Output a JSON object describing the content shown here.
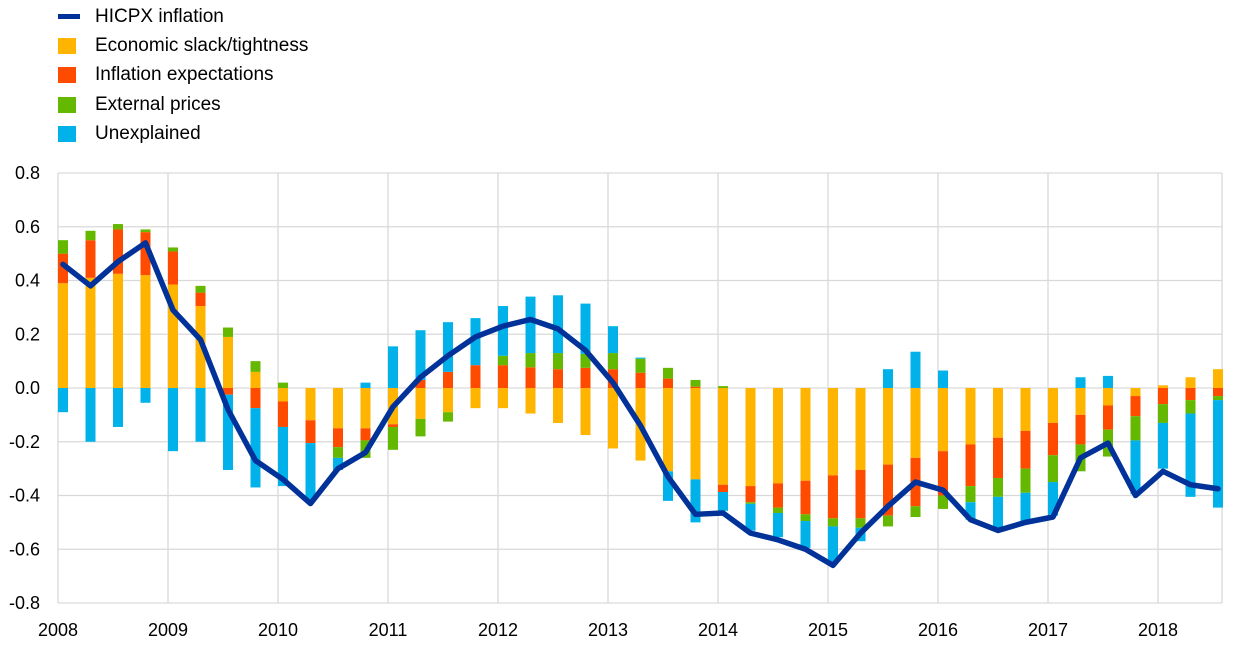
{
  "chart_data": {
    "type": "bar",
    "subtype": "stacked bar with line",
    "title": "",
    "xlabel": "",
    "ylabel": "",
    "ylim": [
      -0.8,
      0.8
    ],
    "yticks": [
      "0.8",
      "0.6",
      "0.4",
      "0.2",
      "0.0",
      "-0.2",
      "-0.4",
      "-0.6",
      "-0.8"
    ],
    "ytick_values": [
      0.8,
      0.6,
      0.4,
      0.2,
      0,
      -0.2,
      -0.4,
      -0.6,
      -0.8
    ],
    "xticks": [
      "2008",
      "2009",
      "2010",
      "2011",
      "2012",
      "2013",
      "2014",
      "2015",
      "2016",
      "2017",
      "2018"
    ],
    "grid": true,
    "legend_position": "top-left",
    "x_start": "2008Q1",
    "frequency": "quarterly",
    "legend": [
      {
        "name": "HICPX inflation",
        "kind": "line",
        "color": "#003299"
      },
      {
        "name": "Economic slack/tightness",
        "kind": "bar",
        "color": "#FFB400"
      },
      {
        "name": "Inflation expectations",
        "kind": "bar",
        "color": "#FF4B00"
      },
      {
        "name": "External prices",
        "kind": "bar",
        "color": "#65B800"
      },
      {
        "name": "Unexplained",
        "kind": "bar",
        "color": "#00B1EA"
      }
    ],
    "series": [
      {
        "name": "Economic slack/tightness",
        "color": "#FFB400",
        "values": [
          0.39,
          0.41,
          0.425,
          0.42,
          0.385,
          0.305,
          0.19,
          0.06,
          -0.05,
          -0.12,
          -0.15,
          -0.15,
          -0.135,
          -0.115,
          -0.09,
          -0.075,
          -0.075,
          -0.095,
          -0.13,
          -0.175,
          -0.225,
          -0.27,
          -0.31,
          -0.34,
          -0.36,
          -0.365,
          -0.355,
          -0.345,
          -0.325,
          -0.305,
          -0.285,
          -0.26,
          -0.235,
          -0.21,
          -0.185,
          -0.16,
          -0.13,
          -0.1,
          -0.065,
          -0.03,
          0.01,
          0.04,
          0.07
        ]
      },
      {
        "name": "Inflation expectations",
        "color": "#FF4B00",
        "values": [
          0.11,
          0.14,
          0.165,
          0.16,
          0.123,
          0.05,
          -0.025,
          -0.075,
          -0.095,
          -0.085,
          -0.07,
          -0.045,
          -0.01,
          0.03,
          0.06,
          0.085,
          0.085,
          0.077,
          0.07,
          0.075,
          0.07,
          0.057,
          0.035,
          0.005,
          -0.027,
          -0.06,
          -0.09,
          -0.125,
          -0.16,
          -0.18,
          -0.19,
          -0.18,
          -0.165,
          -0.155,
          -0.15,
          -0.14,
          -0.12,
          -0.11,
          -0.09,
          -0.075,
          -0.06,
          -0.045,
          -0.03
        ]
      },
      {
        "name": "External prices",
        "color": "#65B800",
        "values": [
          0.05,
          0.035,
          0.02,
          0.01,
          0.015,
          0.025,
          0.035,
          0.04,
          0.02,
          0,
          -0.04,
          -0.065,
          -0.085,
          -0.065,
          -0.035,
          0,
          0.035,
          0.053,
          0.06,
          0.052,
          0.06,
          0.052,
          0.04,
          0.025,
          0.007,
          -0.006,
          -0.02,
          -0.025,
          -0.03,
          -0.035,
          -0.04,
          -0.04,
          -0.05,
          -0.06,
          -0.07,
          -0.09,
          -0.1,
          -0.1,
          -0.1,
          -0.09,
          -0.07,
          -0.05,
          -0.015
        ]
      },
      {
        "name": "Unexplained",
        "color": "#00B1EA",
        "values": [
          -0.09,
          -0.2,
          -0.145,
          -0.055,
          -0.235,
          -0.2,
          -0.28,
          -0.295,
          -0.22,
          -0.21,
          -0.045,
          0.02,
          0.155,
          0.185,
          0.185,
          0.175,
          0.185,
          0.21,
          0.215,
          0.187,
          0.1,
          0.004,
          -0.11,
          -0.16,
          -0.07,
          -0.1,
          -0.09,
          -0.1,
          -0.14,
          -0.05,
          0.07,
          0.135,
          0.065,
          -0.065,
          -0.115,
          -0.105,
          -0.125,
          0.04,
          0.045,
          -0.2,
          -0.17,
          -0.31,
          -0.4
        ]
      },
      {
        "name": "HICPX inflation",
        "color": "#003299",
        "type": "line",
        "values": [
          0.46,
          0.38,
          0.47,
          0.54,
          0.29,
          0.18,
          -0.08,
          -0.27,
          -0.34,
          -0.43,
          -0.3,
          -0.24,
          -0.07,
          0.04,
          0.12,
          0.19,
          0.23,
          0.255,
          0.22,
          0.14,
          0.02,
          -0.14,
          -0.33,
          -0.47,
          -0.465,
          -0.54,
          -0.565,
          -0.6,
          -0.66,
          -0.54,
          -0.44,
          -0.35,
          -0.38,
          -0.49,
          -0.53,
          -0.5,
          -0.48,
          -0.26,
          -0.205,
          -0.4,
          -0.31,
          -0.36,
          -0.375
        ]
      }
    ]
  }
}
